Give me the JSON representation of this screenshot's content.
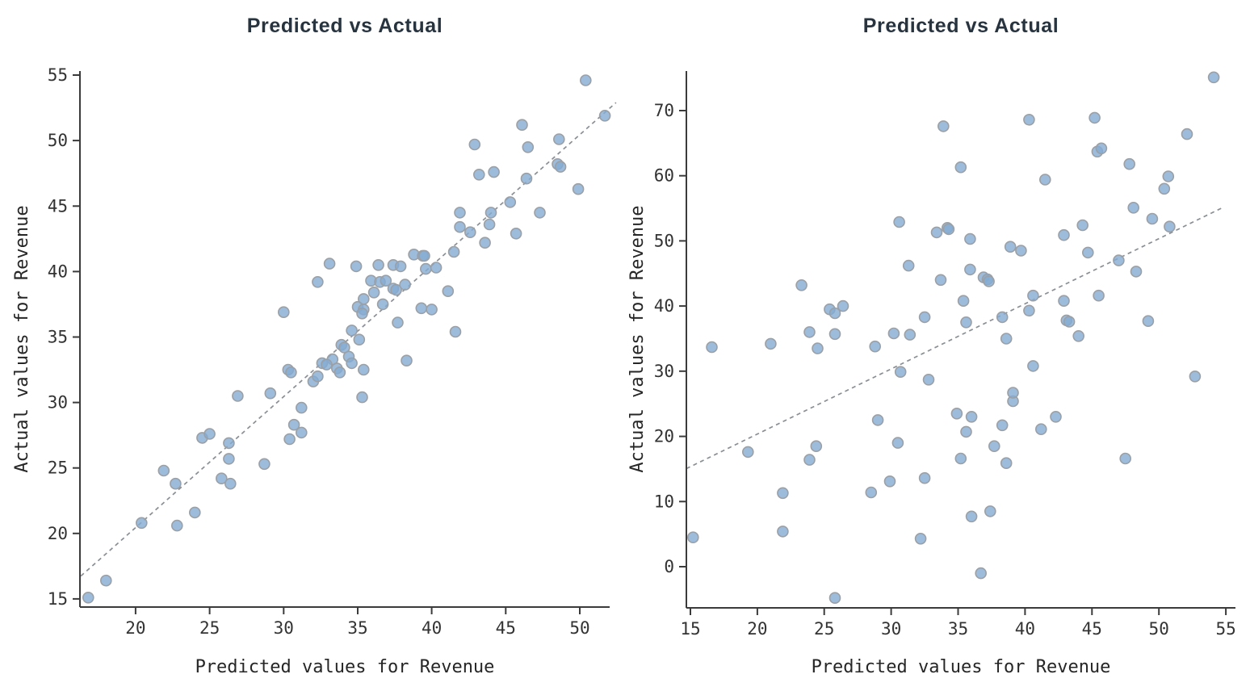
{
  "figure": {
    "background": "#ffffff",
    "spine_color": "#3b3b3b",
    "tick_label_color": "#333333",
    "title_color": "#273440"
  },
  "chart_data": [
    {
      "type": "scatter",
      "title": "Predicted vs Actual",
      "xlabel": "Predicted values for Revenue",
      "ylabel": "Actual values for Revenue",
      "xlim": [
        16.24,
        52.02
      ],
      "ylim": [
        14.38,
        55.31
      ],
      "xticks": [
        20,
        25,
        30,
        35,
        40,
        45,
        50
      ],
      "yticks": [
        15,
        20,
        25,
        30,
        35,
        40,
        45,
        50,
        55
      ],
      "grid": false,
      "legend": null,
      "marker": {
        "fill": "#84abd3",
        "stroke": "#9aa0a6",
        "radius": 6.5,
        "opacity": 0.8,
        "stroke_width": 1.6
      },
      "trendline": {
        "style": "dashed",
        "color": "#8a8f94",
        "width": 1.7,
        "dash": "5 4.5",
        "x1": 16.3,
        "y1": 16.75,
        "x2": 52.45,
        "y2": 52.9
      },
      "points": [
        [
          16.8,
          15.1
        ],
        [
          18.0,
          16.4
        ],
        [
          20.4,
          20.8
        ],
        [
          22.8,
          20.6
        ],
        [
          24.0,
          21.6
        ],
        [
          21.9,
          24.8
        ],
        [
          22.7,
          23.8
        ],
        [
          24.5,
          27.3
        ],
        [
          25.0,
          27.6
        ],
        [
          25.8,
          24.2
        ],
        [
          26.4,
          23.8
        ],
        [
          26.3,
          26.9
        ],
        [
          26.3,
          25.7
        ],
        [
          28.7,
          25.3
        ],
        [
          26.9,
          30.5
        ],
        [
          29.1,
          30.7
        ],
        [
          31.2,
          29.6
        ],
        [
          30.7,
          28.3
        ],
        [
          31.2,
          27.7
        ],
        [
          30.4,
          27.2
        ],
        [
          30.0,
          36.9
        ],
        [
          32.3,
          39.2
        ],
        [
          30.3,
          32.5
        ],
        [
          30.5,
          32.3
        ],
        [
          32.0,
          31.6
        ],
        [
          32.3,
          32.0
        ],
        [
          33.3,
          33.3
        ],
        [
          32.6,
          33.0
        ],
        [
          32.9,
          32.9
        ],
        [
          33.6,
          32.6
        ],
        [
          33.8,
          32.3
        ],
        [
          33.9,
          34.4
        ],
        [
          34.1,
          34.2
        ],
        [
          34.4,
          33.5
        ],
        [
          34.6,
          33.0
        ],
        [
          34.6,
          35.5
        ],
        [
          35.1,
          34.8
        ],
        [
          35.4,
          32.5
        ],
        [
          35.3,
          30.4
        ],
        [
          38.3,
          33.2
        ],
        [
          35.0,
          37.3
        ],
        [
          35.4,
          37.1
        ],
        [
          35.3,
          36.8
        ],
        [
          35.4,
          37.9
        ],
        [
          36.1,
          38.4
        ],
        [
          36.7,
          37.5
        ],
        [
          37.7,
          36.1
        ],
        [
          39.3,
          37.2
        ],
        [
          40.0,
          37.1
        ],
        [
          41.6,
          35.4
        ],
        [
          41.1,
          38.5
        ],
        [
          35.9,
          39.3
        ],
        [
          36.5,
          39.2
        ],
        [
          36.9,
          39.3
        ],
        [
          37.4,
          38.7
        ],
        [
          37.6,
          38.6
        ],
        [
          38.2,
          39.0
        ],
        [
          33.1,
          40.6
        ],
        [
          34.9,
          40.4
        ],
        [
          36.4,
          40.5
        ],
        [
          37.4,
          40.5
        ],
        [
          37.9,
          40.4
        ],
        [
          39.6,
          40.2
        ],
        [
          40.3,
          40.3
        ],
        [
          38.8,
          41.3
        ],
        [
          39.4,
          41.2
        ],
        [
          39.5,
          41.2
        ],
        [
          41.5,
          41.5
        ],
        [
          41.9,
          43.4
        ],
        [
          41.9,
          44.5
        ],
        [
          42.6,
          43.0
        ],
        [
          43.6,
          42.2
        ],
        [
          43.9,
          43.6
        ],
        [
          44.0,
          44.5
        ],
        [
          45.7,
          42.9
        ],
        [
          45.3,
          45.3
        ],
        [
          47.3,
          44.5
        ],
        [
          43.2,
          47.4
        ],
        [
          44.2,
          47.6
        ],
        [
          46.4,
          47.1
        ],
        [
          48.5,
          48.2
        ],
        [
          48.7,
          48.0
        ],
        [
          49.9,
          46.3
        ],
        [
          42.9,
          49.7
        ],
        [
          46.5,
          49.5
        ],
        [
          46.1,
          51.2
        ],
        [
          48.6,
          50.1
        ],
        [
          51.7,
          51.9
        ],
        [
          50.4,
          54.6
        ]
      ]
    },
    {
      "type": "scatter",
      "title": "Predicted vs Actual",
      "xlabel": "Predicted values for Revenue",
      "ylabel": "Actual values for Revenue",
      "xlim": [
        14.7,
        55.72
      ],
      "ylim": [
        -6.32,
        76.07
      ],
      "xticks": [
        15,
        20,
        25,
        30,
        35,
        40,
        45,
        50,
        55
      ],
      "yticks": [
        0,
        10,
        20,
        30,
        40,
        50,
        60,
        70
      ],
      "grid": false,
      "legend": null,
      "marker": {
        "fill": "#84abd3",
        "stroke": "#9aa0a6",
        "radius": 6.5,
        "opacity": 0.8,
        "stroke_width": 1.6
      },
      "trendline": {
        "style": "dashed",
        "color": "#8a8f94",
        "width": 1.7,
        "dash": "5 4.5",
        "x1": 14.7,
        "y1": 15.05,
        "x2": 54.75,
        "y2": 55.1
      },
      "points": [
        [
          15.2,
          4.5
        ],
        [
          21.9,
          5.4
        ],
        [
          25.8,
          -4.8
        ],
        [
          32.2,
          4.3
        ],
        [
          36.7,
          -1.0
        ],
        [
          36.0,
          7.7
        ],
        [
          37.4,
          8.5
        ],
        [
          21.9,
          11.3
        ],
        [
          28.5,
          11.4
        ],
        [
          29.9,
          13.1
        ],
        [
          32.5,
          13.6
        ],
        [
          23.9,
          16.4
        ],
        [
          19.3,
          17.6
        ],
        [
          24.4,
          18.5
        ],
        [
          30.5,
          19.0
        ],
        [
          35.2,
          16.6
        ],
        [
          38.6,
          15.9
        ],
        [
          47.5,
          16.6
        ],
        [
          37.7,
          18.5
        ],
        [
          35.6,
          20.7
        ],
        [
          38.3,
          21.7
        ],
        [
          41.2,
          21.1
        ],
        [
          29.0,
          22.5
        ],
        [
          34.9,
          23.5
        ],
        [
          36.0,
          23.0
        ],
        [
          42.3,
          23.0
        ],
        [
          39.1,
          25.4
        ],
        [
          39.1,
          26.7
        ],
        [
          32.8,
          28.7
        ],
        [
          30.7,
          29.9
        ],
        [
          40.6,
          30.8
        ],
        [
          52.7,
          29.2
        ],
        [
          16.6,
          33.7
        ],
        [
          21.0,
          34.2
        ],
        [
          24.5,
          33.5
        ],
        [
          28.8,
          33.8
        ],
        [
          23.9,
          36.0
        ],
        [
          25.8,
          35.7
        ],
        [
          30.2,
          35.8
        ],
        [
          31.4,
          35.6
        ],
        [
          38.6,
          35.0
        ],
        [
          44.0,
          35.4
        ],
        [
          35.6,
          37.5
        ],
        [
          32.5,
          38.3
        ],
        [
          38.3,
          38.3
        ],
        [
          25.4,
          39.5
        ],
        [
          25.8,
          38.9
        ],
        [
          26.4,
          40.0
        ],
        [
          40.3,
          39.3
        ],
        [
          43.1,
          37.8
        ],
        [
          43.3,
          37.6
        ],
        [
          49.2,
          37.7
        ],
        [
          35.4,
          40.8
        ],
        [
          40.6,
          41.6
        ],
        [
          42.9,
          40.8
        ],
        [
          45.5,
          41.6
        ],
        [
          23.3,
          43.2
        ],
        [
          33.7,
          44.0
        ],
        [
          36.9,
          44.4
        ],
        [
          37.2,
          44.1
        ],
        [
          37.3,
          43.8
        ],
        [
          31.3,
          46.2
        ],
        [
          35.9,
          45.6
        ],
        [
          38.9,
          49.1
        ],
        [
          39.7,
          48.5
        ],
        [
          44.7,
          48.2
        ],
        [
          47.0,
          47.0
        ],
        [
          48.3,
          45.3
        ],
        [
          42.9,
          50.9
        ],
        [
          44.3,
          52.4
        ],
        [
          30.6,
          52.9
        ],
        [
          33.4,
          51.3
        ],
        [
          34.2,
          52.0
        ],
        [
          34.3,
          51.8
        ],
        [
          35.9,
          50.3
        ],
        [
          50.8,
          52.2
        ],
        [
          49.5,
          53.4
        ],
        [
          48.1,
          55.1
        ],
        [
          50.4,
          58.0
        ],
        [
          41.5,
          59.4
        ],
        [
          50.7,
          59.9
        ],
        [
          35.2,
          61.3
        ],
        [
          47.8,
          61.8
        ],
        [
          45.4,
          63.7
        ],
        [
          45.7,
          64.2
        ],
        [
          52.1,
          66.4
        ],
        [
          33.9,
          67.6
        ],
        [
          40.3,
          68.6
        ],
        [
          45.2,
          68.9
        ],
        [
          54.1,
          75.1
        ]
      ]
    }
  ]
}
